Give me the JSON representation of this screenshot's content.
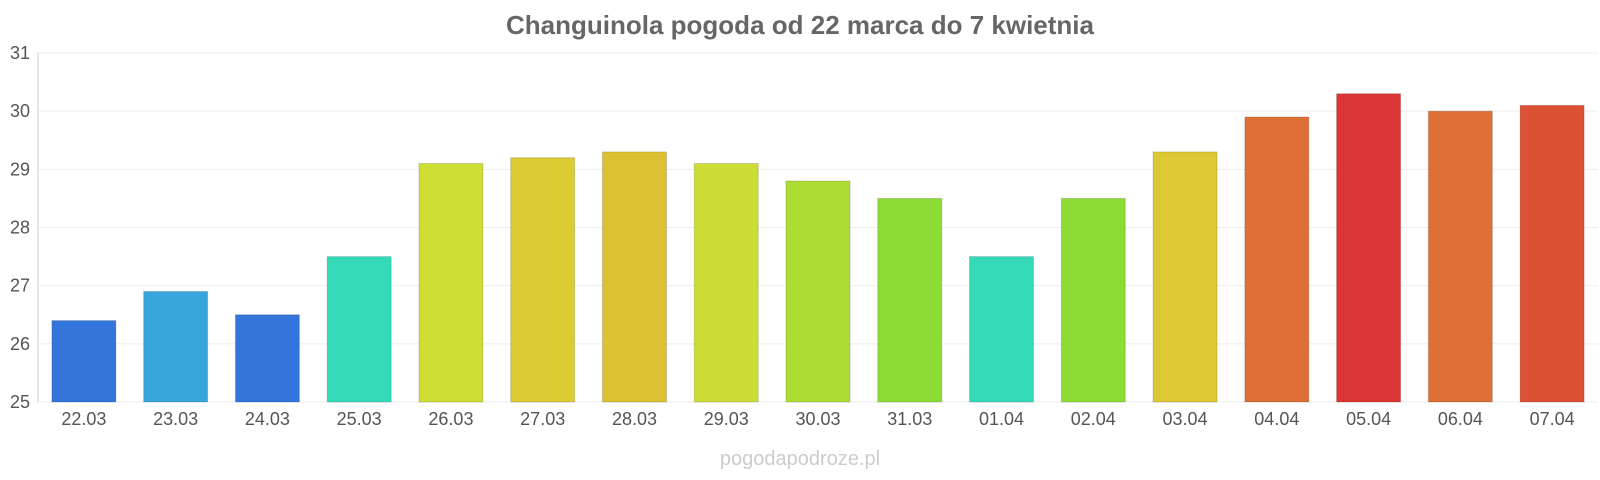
{
  "chart_data": {
    "type": "bar",
    "title": "Changuinola pogoda od 22 marca do 7 kwietnia",
    "categories": [
      "22.03",
      "23.03",
      "24.03",
      "25.03",
      "26.03",
      "27.03",
      "28.03",
      "29.03",
      "30.03",
      "31.03",
      "01.04",
      "02.04",
      "03.04",
      "04.04",
      "05.04",
      "06.04",
      "07.04"
    ],
    "values": [
      26.4,
      26.9,
      26.5,
      27.5,
      29.1,
      29.2,
      29.3,
      29.1,
      28.8,
      28.5,
      27.5,
      28.5,
      29.3,
      29.9,
      30.3,
      30.0,
      30.1
    ],
    "colors": [
      "#3375db",
      "#36a6dc",
      "#3375db",
      "#35dab8",
      "#cede33",
      "#dccb33",
      "#dcc233",
      "#cedd35",
      "#addc35",
      "#8cdc35",
      "#35dab8",
      "#8cdc35",
      "#dcc833",
      "#dd7135",
      "#dc3535",
      "#dd7135",
      "#dc5034"
    ],
    "ylim": [
      25,
      31
    ],
    "yticks": [
      25,
      26,
      27,
      28,
      29,
      30,
      31
    ],
    "xlabel": "",
    "ylabel": "",
    "grid": true
  },
  "watermark": "pogodapodroze.pl"
}
